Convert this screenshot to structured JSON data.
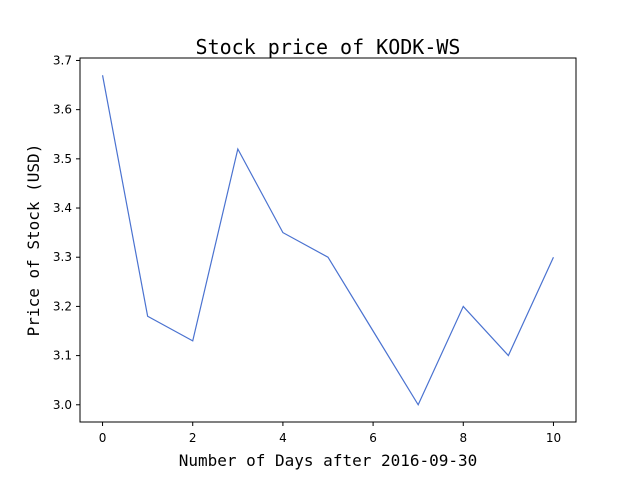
{
  "chart_data": {
    "type": "line",
    "title": "Stock price of KODK-WS",
    "xlabel": "Number of Days after 2016-09-30",
    "ylabel": "Price of Stock (USD)",
    "xlim": [
      -0.5,
      10.5
    ],
    "ylim": [
      2.965,
      3.705
    ],
    "x_ticks": [
      0,
      2,
      4,
      6,
      8,
      10
    ],
    "y_ticks": [
      3.0,
      3.1,
      3.2,
      3.3,
      3.4,
      3.5,
      3.6,
      3.7
    ],
    "y_tick_labels": [
      "3.0",
      "3.1",
      "3.2",
      "3.3",
      "3.4",
      "3.5",
      "3.6",
      "3.7"
    ],
    "grid": false,
    "series": [
      {
        "color": "#4a72d0",
        "x": [
          0,
          1,
          2,
          3,
          4,
          5,
          6,
          7,
          8,
          9,
          10
        ],
        "y": [
          3.67,
          3.18,
          3.13,
          3.52,
          3.35,
          3.3,
          3.15,
          3.0,
          3.2,
          3.1,
          3.3
        ]
      }
    ]
  }
}
